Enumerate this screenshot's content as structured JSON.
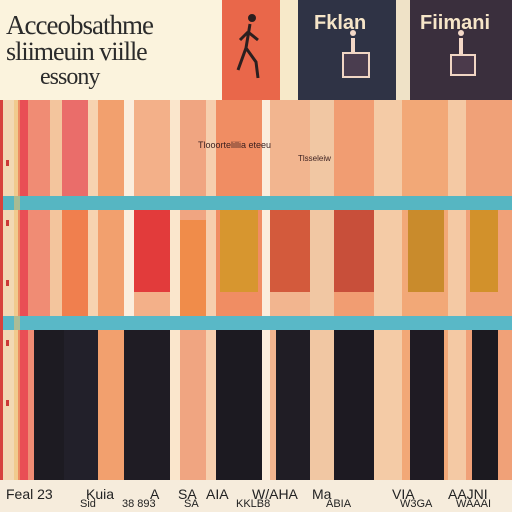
{
  "title": {
    "line1": "Acceobsathme",
    "line2": "sliimeuin viille",
    "line3": "essony"
  },
  "panels": {
    "left_label": "Fklan",
    "right_label": "Fiimani"
  },
  "chart_annotations": [
    "Tlooortelillia eteeu",
    "Tlsseleiw"
  ],
  "footer": {
    "labels": [
      "Feal 23",
      "Kuia",
      "A",
      "SA",
      "AIA",
      "W/AHA",
      "Ma",
      "VIA",
      "AAJNI"
    ],
    "small_labels": [
      "Sid",
      "38 893",
      "KKLB8",
      "SA",
      "ABIA",
      "W3GA",
      "WAAAI"
    ]
  },
  "colors": {
    "background": "#f3e6cf",
    "title_bg": "#fbf3dd",
    "accent_red": "#e9674a",
    "panel_dark": "#2f3345",
    "panel_dark2": "#3a2f3d",
    "band_teal": "#56b6c2",
    "bar_orange": "#f2a06e",
    "bar_dark": "#1d1b22",
    "bar_red": "#e23b3b",
    "bar_amber": "#d7962f"
  }
}
